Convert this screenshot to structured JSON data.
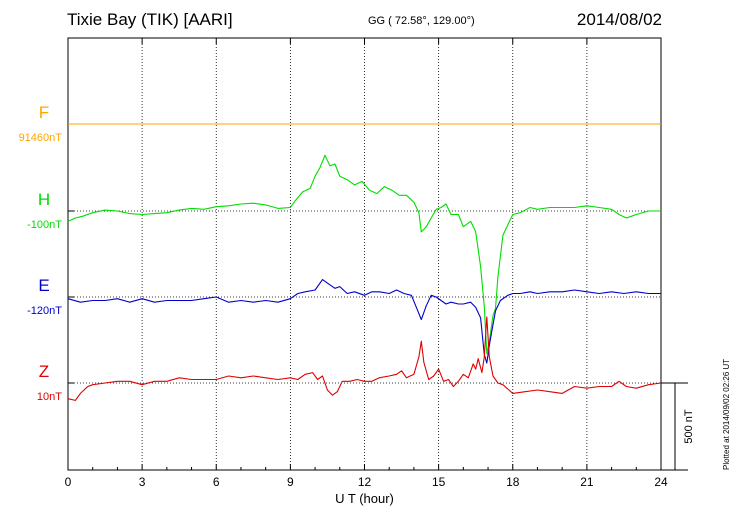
{
  "header": {
    "station": "Tixie Bay (TIK)  [AARI]",
    "coords": "GG ( 72.58°, 129.00°)",
    "date": "2014/08/02"
  },
  "plotted_note": "Plotted at 2014/09/02 02:26 UT",
  "chart_data": {
    "type": "line",
    "xlabel": "U T (hour)",
    "xlim": [
      0,
      24
    ],
    "xticks": [
      "0",
      "3",
      "6",
      "9",
      "12",
      "15",
      "18",
      "21",
      "24"
    ],
    "scale_label": "500 nT",
    "grid": true,
    "series": [
      {
        "name": "F",
        "baseline_label": "91460nT",
        "color": "#ffa500",
        "points": [
          [
            0,
            0
          ],
          [
            24,
            0
          ]
        ]
      },
      {
        "name": "H",
        "baseline_label": "-100nT",
        "color": "#00dd00",
        "points": [
          [
            0,
            -60
          ],
          [
            0.3,
            -40
          ],
          [
            0.6,
            -30
          ],
          [
            1,
            -10
          ],
          [
            1.5,
            5
          ],
          [
            2,
            0
          ],
          [
            2.5,
            -15
          ],
          [
            3,
            -20
          ],
          [
            3.5,
            -15
          ],
          [
            4,
            -10
          ],
          [
            4.5,
            5
          ],
          [
            5,
            15
          ],
          [
            5.5,
            10
          ],
          [
            6,
            25
          ],
          [
            6.5,
            30
          ],
          [
            7,
            40
          ],
          [
            7.5,
            45
          ],
          [
            8,
            35
          ],
          [
            8.5,
            15
          ],
          [
            9,
            20
          ],
          [
            9.2,
            60
          ],
          [
            9.5,
            110
          ],
          [
            9.8,
            130
          ],
          [
            10,
            200
          ],
          [
            10.2,
            250
          ],
          [
            10.4,
            320
          ],
          [
            10.6,
            260
          ],
          [
            10.8,
            270
          ],
          [
            11,
            200
          ],
          [
            11.3,
            180
          ],
          [
            11.6,
            150
          ],
          [
            11.9,
            170
          ],
          [
            12.2,
            120
          ],
          [
            12.5,
            100
          ],
          [
            12.8,
            140
          ],
          [
            13.1,
            120
          ],
          [
            13.4,
            90
          ],
          [
            13.7,
            90
          ],
          [
            14,
            50
          ],
          [
            14.2,
            -10
          ],
          [
            14.3,
            -120
          ],
          [
            14.5,
            -90
          ],
          [
            14.7,
            -40
          ],
          [
            14.9,
            10
          ],
          [
            15.1,
            20
          ],
          [
            15.3,
            40
          ],
          [
            15.5,
            -20
          ],
          [
            15.8,
            -20
          ],
          [
            16,
            -90
          ],
          [
            16.3,
            -60
          ],
          [
            16.5,
            -120
          ],
          [
            16.7,
            -320
          ],
          [
            16.85,
            -550
          ],
          [
            16.95,
            -820
          ],
          [
            17.05,
            -750
          ],
          [
            17.2,
            -600
          ],
          [
            17.3,
            -560
          ],
          [
            17.4,
            -380
          ],
          [
            17.5,
            -260
          ],
          [
            17.6,
            -140
          ],
          [
            17.8,
            -80
          ],
          [
            18,
            -20
          ],
          [
            18.3,
            -10
          ],
          [
            18.7,
            20
          ],
          [
            19,
            10
          ],
          [
            19.5,
            20
          ],
          [
            20,
            20
          ],
          [
            20.5,
            20
          ],
          [
            21,
            30
          ],
          [
            21.5,
            20
          ],
          [
            22,
            10
          ],
          [
            22.3,
            -20
          ],
          [
            22.6,
            -40
          ],
          [
            23,
            -20
          ],
          [
            23.5,
            0
          ],
          [
            24,
            0
          ]
        ]
      },
      {
        "name": "E",
        "baseline_label": "-120nT",
        "color": "#0000cc",
        "points": [
          [
            0,
            -10
          ],
          [
            0.5,
            -30
          ],
          [
            1,
            -20
          ],
          [
            1.5,
            -20
          ],
          [
            2,
            -10
          ],
          [
            2.5,
            -30
          ],
          [
            3,
            -10
          ],
          [
            3.5,
            -30
          ],
          [
            4,
            -20
          ],
          [
            4.5,
            -20
          ],
          [
            5,
            -20
          ],
          [
            5.5,
            -10
          ],
          [
            6,
            0
          ],
          [
            6.5,
            -30
          ],
          [
            7,
            -20
          ],
          [
            7.5,
            -30
          ],
          [
            8,
            -20
          ],
          [
            8.5,
            -30
          ],
          [
            9,
            -10
          ],
          [
            9.3,
            20
          ],
          [
            9.6,
            30
          ],
          [
            10,
            40
          ],
          [
            10.3,
            100
          ],
          [
            10.5,
            80
          ],
          [
            10.8,
            50
          ],
          [
            11,
            60
          ],
          [
            11.3,
            20
          ],
          [
            11.6,
            30
          ],
          [
            12,
            10
          ],
          [
            12.3,
            30
          ],
          [
            12.6,
            30
          ],
          [
            13,
            20
          ],
          [
            13.3,
            40
          ],
          [
            13.6,
            20
          ],
          [
            13.9,
            10
          ],
          [
            14.1,
            -60
          ],
          [
            14.3,
            -130
          ],
          [
            14.5,
            -50
          ],
          [
            14.7,
            10
          ],
          [
            14.9,
            0
          ],
          [
            15.1,
            -20
          ],
          [
            15.3,
            -40
          ],
          [
            15.5,
            -30
          ],
          [
            15.8,
            -40
          ],
          [
            16,
            -40
          ],
          [
            16.3,
            -30
          ],
          [
            16.5,
            -60
          ],
          [
            16.7,
            -120
          ],
          [
            16.85,
            -330
          ],
          [
            16.95,
            -380
          ],
          [
            17.05,
            -280
          ],
          [
            17.15,
            -200
          ],
          [
            17.3,
            -80
          ],
          [
            17.5,
            -20
          ],
          [
            17.8,
            10
          ],
          [
            18,
            20
          ],
          [
            18.3,
            20
          ],
          [
            18.7,
            30
          ],
          [
            19,
            20
          ],
          [
            19.5,
            30
          ],
          [
            20,
            30
          ],
          [
            20.5,
            40
          ],
          [
            21,
            30
          ],
          [
            21.5,
            20
          ],
          [
            22,
            30
          ],
          [
            22.5,
            20
          ],
          [
            23,
            30
          ],
          [
            23.5,
            20
          ],
          [
            24,
            20
          ]
        ]
      },
      {
        "name": "Z",
        "baseline_label": "10nT",
        "color": "#e00000",
        "points": [
          [
            0,
            -90
          ],
          [
            0.3,
            -100
          ],
          [
            0.5,
            -60
          ],
          [
            0.8,
            -20
          ],
          [
            1,
            -10
          ],
          [
            1.5,
            0
          ],
          [
            2,
            10
          ],
          [
            2.5,
            10
          ],
          [
            3,
            -10
          ],
          [
            3.5,
            10
          ],
          [
            4,
            10
          ],
          [
            4.5,
            30
          ],
          [
            5,
            20
          ],
          [
            5.5,
            20
          ],
          [
            6,
            20
          ],
          [
            6.5,
            40
          ],
          [
            7,
            30
          ],
          [
            7.5,
            40
          ],
          [
            8,
            30
          ],
          [
            8.5,
            20
          ],
          [
            9,
            30
          ],
          [
            9.3,
            20
          ],
          [
            9.6,
            50
          ],
          [
            9.9,
            60
          ],
          [
            10.1,
            20
          ],
          [
            10.3,
            40
          ],
          [
            10.5,
            -40
          ],
          [
            10.7,
            -70
          ],
          [
            10.9,
            -50
          ],
          [
            11.1,
            10
          ],
          [
            11.4,
            10
          ],
          [
            11.7,
            20
          ],
          [
            12,
            10
          ],
          [
            12.3,
            10
          ],
          [
            12.6,
            30
          ],
          [
            13,
            40
          ],
          [
            13.3,
            50
          ],
          [
            13.5,
            70
          ],
          [
            13.7,
            30
          ],
          [
            14,
            50
          ],
          [
            14.2,
            150
          ],
          [
            14.3,
            240
          ],
          [
            14.4,
            120
          ],
          [
            14.6,
            20
          ],
          [
            14.8,
            40
          ],
          [
            15,
            80
          ],
          [
            15.2,
            10
          ],
          [
            15.4,
            20
          ],
          [
            15.6,
            -20
          ],
          [
            15.8,
            10
          ],
          [
            16,
            50
          ],
          [
            16.2,
            30
          ],
          [
            16.4,
            110
          ],
          [
            16.5,
            80
          ],
          [
            16.6,
            140
          ],
          [
            16.75,
            60
          ],
          [
            16.85,
            150
          ],
          [
            16.95,
            380
          ],
          [
            17.05,
            150
          ],
          [
            17.2,
            40
          ],
          [
            17.4,
            0
          ],
          [
            17.6,
            -10
          ],
          [
            18,
            -60
          ],
          [
            18.5,
            -50
          ],
          [
            19,
            -40
          ],
          [
            19.5,
            -50
          ],
          [
            20,
            -60
          ],
          [
            20.5,
            -20
          ],
          [
            21,
            -30
          ],
          [
            21.5,
            -20
          ],
          [
            22,
            -20
          ],
          [
            22.3,
            10
          ],
          [
            22.6,
            -20
          ],
          [
            23,
            -30
          ],
          [
            23.5,
            -10
          ],
          [
            24,
            0
          ]
        ]
      }
    ]
  }
}
